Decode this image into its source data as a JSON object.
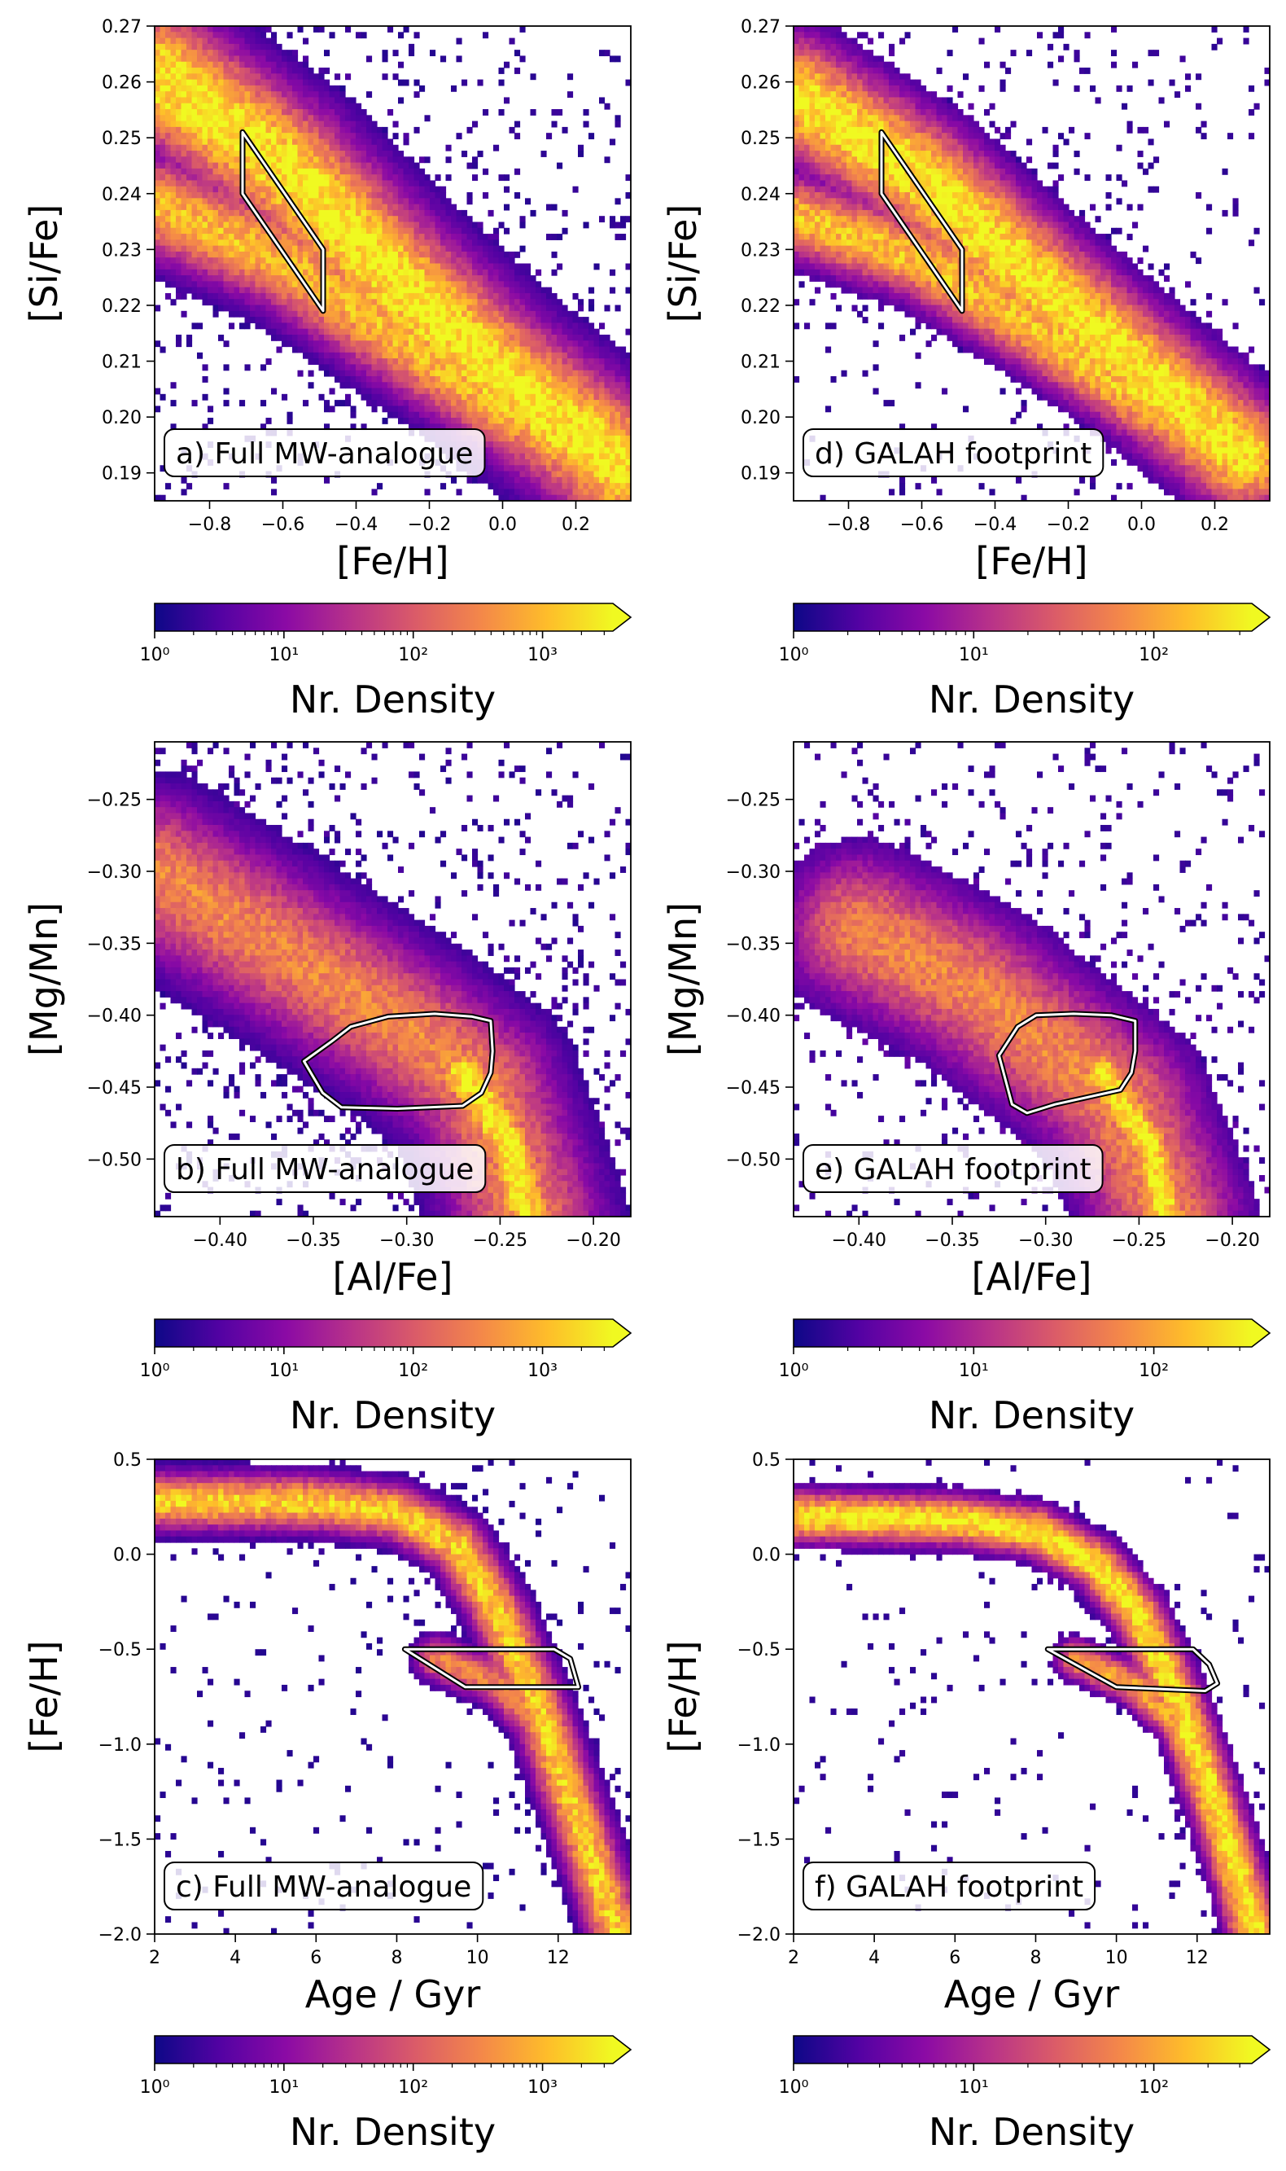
{
  "colors": {
    "colormap": [
      "#0d0887",
      "#5302a3",
      "#8b0aa5",
      "#b83289",
      "#db5c68",
      "#f48849",
      "#febd2a",
      "#f0f921"
    ],
    "selection_outline_outer": "#000000",
    "selection_outline_inner": "#ffffff"
  },
  "chart_data": [
    {
      "type": "heatmap",
      "panel": "a",
      "annotation": "a) Full MW-analogue",
      "xlabel": "[Fe/H]",
      "ylabel": "[Si/Fe]",
      "xlim": [
        -0.95,
        0.35
      ],
      "ylim": [
        0.185,
        0.27
      ],
      "xticks": [
        -0.8,
        -0.6,
        -0.4,
        -0.2,
        0.0,
        0.2
      ],
      "xtick_labels": [
        "−0.8",
        "−0.6",
        "−0.4",
        "−0.2",
        "0.0",
        "0.2"
      ],
      "yticks": [
        0.19,
        0.2,
        0.21,
        0.22,
        0.23,
        0.24,
        0.25,
        0.26,
        0.27
      ],
      "ytick_labels": [
        "0.19",
        "0.20",
        "0.21",
        "0.22",
        "0.23",
        "0.24",
        "0.25",
        "0.26",
        "0.27"
      ],
      "density_model": {
        "ridges": [
          {
            "points": [
              [
                -0.95,
                0.262
              ],
              [
                -0.6,
                0.245
              ],
              [
                -0.3,
                0.225
              ],
              [
                0.0,
                0.207
              ],
              [
                0.35,
                0.19
              ]
            ],
            "width": 0.008,
            "peak": 3.5
          },
          {
            "points": [
              [
                -0.95,
                0.238
              ],
              [
                -0.6,
                0.228
              ],
              [
                -0.3,
                0.215
              ],
              [
                0.0,
                0.202
              ],
              [
                0.35,
                0.19
              ]
            ],
            "width": 0.006,
            "peak": 3.0
          }
        ],
        "background_level": 0.5
      },
      "selection_polygon": [
        [
          -0.71,
          0.251
        ],
        [
          -0.71,
          0.24
        ],
        [
          -0.49,
          0.219
        ],
        [
          -0.49,
          0.23
        ]
      ],
      "colorbar": {
        "label": "Nr. Density",
        "scale": "log",
        "range": [
          1,
          3500
        ],
        "ticks": [
          1,
          10,
          100,
          1000
        ],
        "tick_labels": [
          "10⁰",
          "10¹",
          "10²",
          "10³"
        ],
        "extend": "max"
      }
    },
    {
      "type": "heatmap",
      "panel": "d",
      "annotation": "d) GALAH footprint",
      "xlabel": "[Fe/H]",
      "ylabel": "[Si/Fe]",
      "xlim": [
        -0.95,
        0.35
      ],
      "ylim": [
        0.185,
        0.27
      ],
      "xticks": [
        -0.8,
        -0.6,
        -0.4,
        -0.2,
        0.0,
        0.2
      ],
      "xtick_labels": [
        "−0.8",
        "−0.6",
        "−0.4",
        "−0.2",
        "0.0",
        "0.2"
      ],
      "yticks": [
        0.19,
        0.2,
        0.21,
        0.22,
        0.23,
        0.24,
        0.25,
        0.26,
        0.27
      ],
      "ytick_labels": [
        "0.19",
        "0.20",
        "0.21",
        "0.22",
        "0.23",
        "0.24",
        "0.25",
        "0.26",
        "0.27"
      ],
      "density_model": {
        "ridges": [
          {
            "points": [
              [
                -0.95,
                0.258
              ],
              [
                -0.6,
                0.243
              ],
              [
                -0.3,
                0.225
              ],
              [
                0.0,
                0.208
              ],
              [
                0.28,
                0.193
              ]
            ],
            "width": 0.007,
            "peak": 2.5
          },
          {
            "points": [
              [
                -0.95,
                0.236
              ],
              [
                -0.6,
                0.228
              ],
              [
                -0.3,
                0.216
              ],
              [
                0.0,
                0.203
              ],
              [
                0.28,
                0.193
              ]
            ],
            "width": 0.005,
            "peak": 2.2
          }
        ],
        "background_level": 0.3
      },
      "selection_polygon": [
        [
          -0.71,
          0.251
        ],
        [
          -0.71,
          0.24
        ],
        [
          -0.49,
          0.219
        ],
        [
          -0.49,
          0.23
        ]
      ],
      "colorbar": {
        "label": "Nr. Density",
        "scale": "log",
        "range": [
          1,
          350
        ],
        "ticks": [
          1,
          10,
          100
        ],
        "tick_labels": [
          "10⁰",
          "10¹",
          "10²"
        ],
        "extend": "max"
      }
    },
    {
      "type": "heatmap",
      "panel": "b",
      "annotation": "b) Full MW-analogue",
      "xlabel": "[Al/Fe]",
      "ylabel": "[Mg/Mn]",
      "xlim": [
        -0.435,
        -0.18
      ],
      "ylim": [
        -0.54,
        -0.21
      ],
      "xticks": [
        -0.4,
        -0.35,
        -0.3,
        -0.25,
        -0.2
      ],
      "xtick_labels": [
        "−0.40",
        "−0.35",
        "−0.30",
        "−0.25",
        "−0.20"
      ],
      "yticks": [
        -0.5,
        -0.45,
        -0.4,
        -0.35,
        -0.3,
        -0.25
      ],
      "ytick_labels": [
        "−0.50",
        "−0.45",
        "−0.40",
        "−0.35",
        "−0.30",
        "−0.25"
      ],
      "density_model": {
        "ridges": [
          {
            "points": [
              [
                -0.435,
                -0.3
              ],
              [
                -0.36,
                -0.36
              ],
              [
                -0.3,
                -0.41
              ],
              [
                -0.26,
                -0.45
              ],
              [
                -0.235,
                -0.54
              ]
            ],
            "width": 0.035,
            "peak": 2.5
          },
          {
            "points": [
              [
                -0.27,
                -0.44
              ],
              [
                -0.245,
                -0.49
              ],
              [
                -0.235,
                -0.54
              ]
            ],
            "width": 0.015,
            "peak": 3.5
          }
        ],
        "background_level": 0.6
      },
      "selection_polygon": [
        [
          -0.355,
          -0.432
        ],
        [
          -0.34,
          -0.418
        ],
        [
          -0.33,
          -0.408
        ],
        [
          -0.31,
          -0.401
        ],
        [
          -0.285,
          -0.399
        ],
        [
          -0.265,
          -0.401
        ],
        [
          -0.255,
          -0.404
        ],
        [
          -0.254,
          -0.425
        ],
        [
          -0.255,
          -0.44
        ],
        [
          -0.26,
          -0.454
        ],
        [
          -0.27,
          -0.463
        ],
        [
          -0.305,
          -0.465
        ],
        [
          -0.335,
          -0.464
        ],
        [
          -0.345,
          -0.454
        ]
      ],
      "colorbar": {
        "label": "Nr. Density",
        "scale": "log",
        "range": [
          1,
          3500
        ],
        "ticks": [
          1,
          10,
          100,
          1000
        ],
        "tick_labels": [
          "10⁰",
          "10¹",
          "10²",
          "10³"
        ],
        "extend": "max"
      }
    },
    {
      "type": "heatmap",
      "panel": "e",
      "annotation": "e) GALAH footprint",
      "xlabel": "[Al/Fe]",
      "ylabel": "[Mg/Mn]",
      "xlim": [
        -0.435,
        -0.18
      ],
      "ylim": [
        -0.54,
        -0.21
      ],
      "xticks": [
        -0.4,
        -0.35,
        -0.3,
        -0.25,
        -0.2
      ],
      "xtick_labels": [
        "−0.40",
        "−0.35",
        "−0.30",
        "−0.25",
        "−0.20"
      ],
      "yticks": [
        -0.5,
        -0.45,
        -0.4,
        -0.35,
        -0.3,
        -0.25
      ],
      "ytick_labels": [
        "−0.50",
        "−0.45",
        "−0.40",
        "−0.35",
        "−0.30",
        "−0.25"
      ],
      "density_model": {
        "ridges": [
          {
            "points": [
              [
                -0.4,
                -0.34
              ],
              [
                -0.34,
                -0.38
              ],
              [
                -0.3,
                -0.42
              ],
              [
                -0.26,
                -0.46
              ],
              [
                -0.235,
                -0.54
              ]
            ],
            "width": 0.035,
            "peak": 1.8
          },
          {
            "points": [
              [
                -0.27,
                -0.44
              ],
              [
                -0.245,
                -0.49
              ],
              [
                -0.235,
                -0.54
              ]
            ],
            "width": 0.013,
            "peak": 2.5
          }
        ],
        "background_level": 0.35
      },
      "selection_polygon": [
        [
          -0.325,
          -0.428
        ],
        [
          -0.315,
          -0.408
        ],
        [
          -0.305,
          -0.4
        ],
        [
          -0.285,
          -0.399
        ],
        [
          -0.265,
          -0.4
        ],
        [
          -0.252,
          -0.404
        ],
        [
          -0.252,
          -0.425
        ],
        [
          -0.254,
          -0.44
        ],
        [
          -0.26,
          -0.452
        ],
        [
          -0.295,
          -0.462
        ],
        [
          -0.31,
          -0.468
        ],
        [
          -0.318,
          -0.462
        ]
      ],
      "colorbar": {
        "label": "Nr. Density",
        "scale": "log",
        "range": [
          1,
          350
        ],
        "ticks": [
          1,
          10,
          100
        ],
        "tick_labels": [
          "10⁰",
          "10¹",
          "10²"
        ],
        "extend": "max"
      }
    },
    {
      "type": "heatmap",
      "panel": "c",
      "annotation": "c) Full MW-analogue",
      "xlabel": "Age / Gyr",
      "ylabel": "[Fe/H]",
      "xlim": [
        2,
        13.8
      ],
      "ylim": [
        -2.0,
        0.5
      ],
      "xticks": [
        2,
        4,
        6,
        8,
        10,
        12
      ],
      "xtick_labels": [
        "2",
        "4",
        "6",
        "8",
        "10",
        "12"
      ],
      "yticks": [
        -2.0,
        -1.5,
        -1.0,
        -0.5,
        0.0,
        0.5
      ],
      "ytick_labels": [
        "−2.0",
        "−1.5",
        "−1.0",
        "−0.5",
        "0.0",
        "0.5"
      ],
      "density_model": {
        "ridges": [
          {
            "points": [
              [
                2,
                0.28
              ],
              [
                6,
                0.27
              ],
              [
                8,
                0.22
              ],
              [
                9.5,
                0.05
              ],
              [
                10.5,
                -0.3
              ],
              [
                11.5,
                -0.8
              ],
              [
                12.5,
                -1.4
              ],
              [
                13.5,
                -2.0
              ]
            ],
            "width": 0.1,
            "peak": 3.2
          },
          {
            "points": [
              [
                9,
                -0.55
              ],
              [
                10.5,
                -0.68
              ],
              [
                11.5,
                -0.9
              ],
              [
                12.3,
                -1.3
              ],
              [
                13.2,
                -2.0
              ]
            ],
            "width": 0.08,
            "peak": 2.5
          }
        ],
        "background_level": 0.2
      },
      "selection_polygon": [
        [
          8.2,
          -0.5
        ],
        [
          11.9,
          -0.5
        ],
        [
          12.3,
          -0.55
        ],
        [
          12.5,
          -0.7
        ],
        [
          9.7,
          -0.7
        ]
      ],
      "colorbar": {
        "label": "Nr. Density",
        "scale": "log",
        "range": [
          1,
          3500
        ],
        "ticks": [
          1,
          10,
          100,
          1000
        ],
        "tick_labels": [
          "10⁰",
          "10¹",
          "10²",
          "10³"
        ],
        "extend": "max"
      }
    },
    {
      "type": "heatmap",
      "panel": "f",
      "annotation": "f) GALAH footprint",
      "xlabel": "Age / Gyr",
      "ylabel": "[Fe/H]",
      "xlim": [
        2,
        13.8
      ],
      "ylim": [
        -2.0,
        0.5
      ],
      "xticks": [
        2,
        4,
        6,
        8,
        10,
        12
      ],
      "xtick_labels": [
        "2",
        "4",
        "6",
        "8",
        "10",
        "12"
      ],
      "yticks": [
        -2.0,
        -1.5,
        -1.0,
        -0.5,
        0.0,
        0.5
      ],
      "ytick_labels": [
        "−2.0",
        "−1.5",
        "−1.0",
        "−0.5",
        "0.0",
        "0.5"
      ],
      "density_model": {
        "ridges": [
          {
            "points": [
              [
                2,
                0.2
              ],
              [
                6,
                0.18
              ],
              [
                8,
                0.12
              ],
              [
                9.5,
                -0.05
              ],
              [
                10.5,
                -0.3
              ],
              [
                11.5,
                -0.75
              ],
              [
                12.5,
                -1.35
              ],
              [
                13.5,
                -2.0
              ]
            ],
            "width": 0.09,
            "peak": 2.5
          },
          {
            "points": [
              [
                9,
                -0.55
              ],
              [
                10.5,
                -0.7
              ],
              [
                11.5,
                -0.9
              ],
              [
                12.3,
                -1.3
              ],
              [
                13.2,
                -2.0
              ]
            ],
            "width": 0.07,
            "peak": 2.0
          }
        ],
        "background_level": 0.15
      },
      "selection_polygon": [
        [
          8.3,
          -0.5
        ],
        [
          11.9,
          -0.5
        ],
        [
          12.3,
          -0.58
        ],
        [
          12.5,
          -0.68
        ],
        [
          12.2,
          -0.72
        ],
        [
          10,
          -0.7
        ]
      ],
      "colorbar": {
        "label": "Nr. Density",
        "scale": "log",
        "range": [
          1,
          350
        ],
        "ticks": [
          1,
          10,
          100
        ],
        "tick_labels": [
          "10⁰",
          "10¹",
          "10²"
        ],
        "extend": "max"
      }
    }
  ]
}
